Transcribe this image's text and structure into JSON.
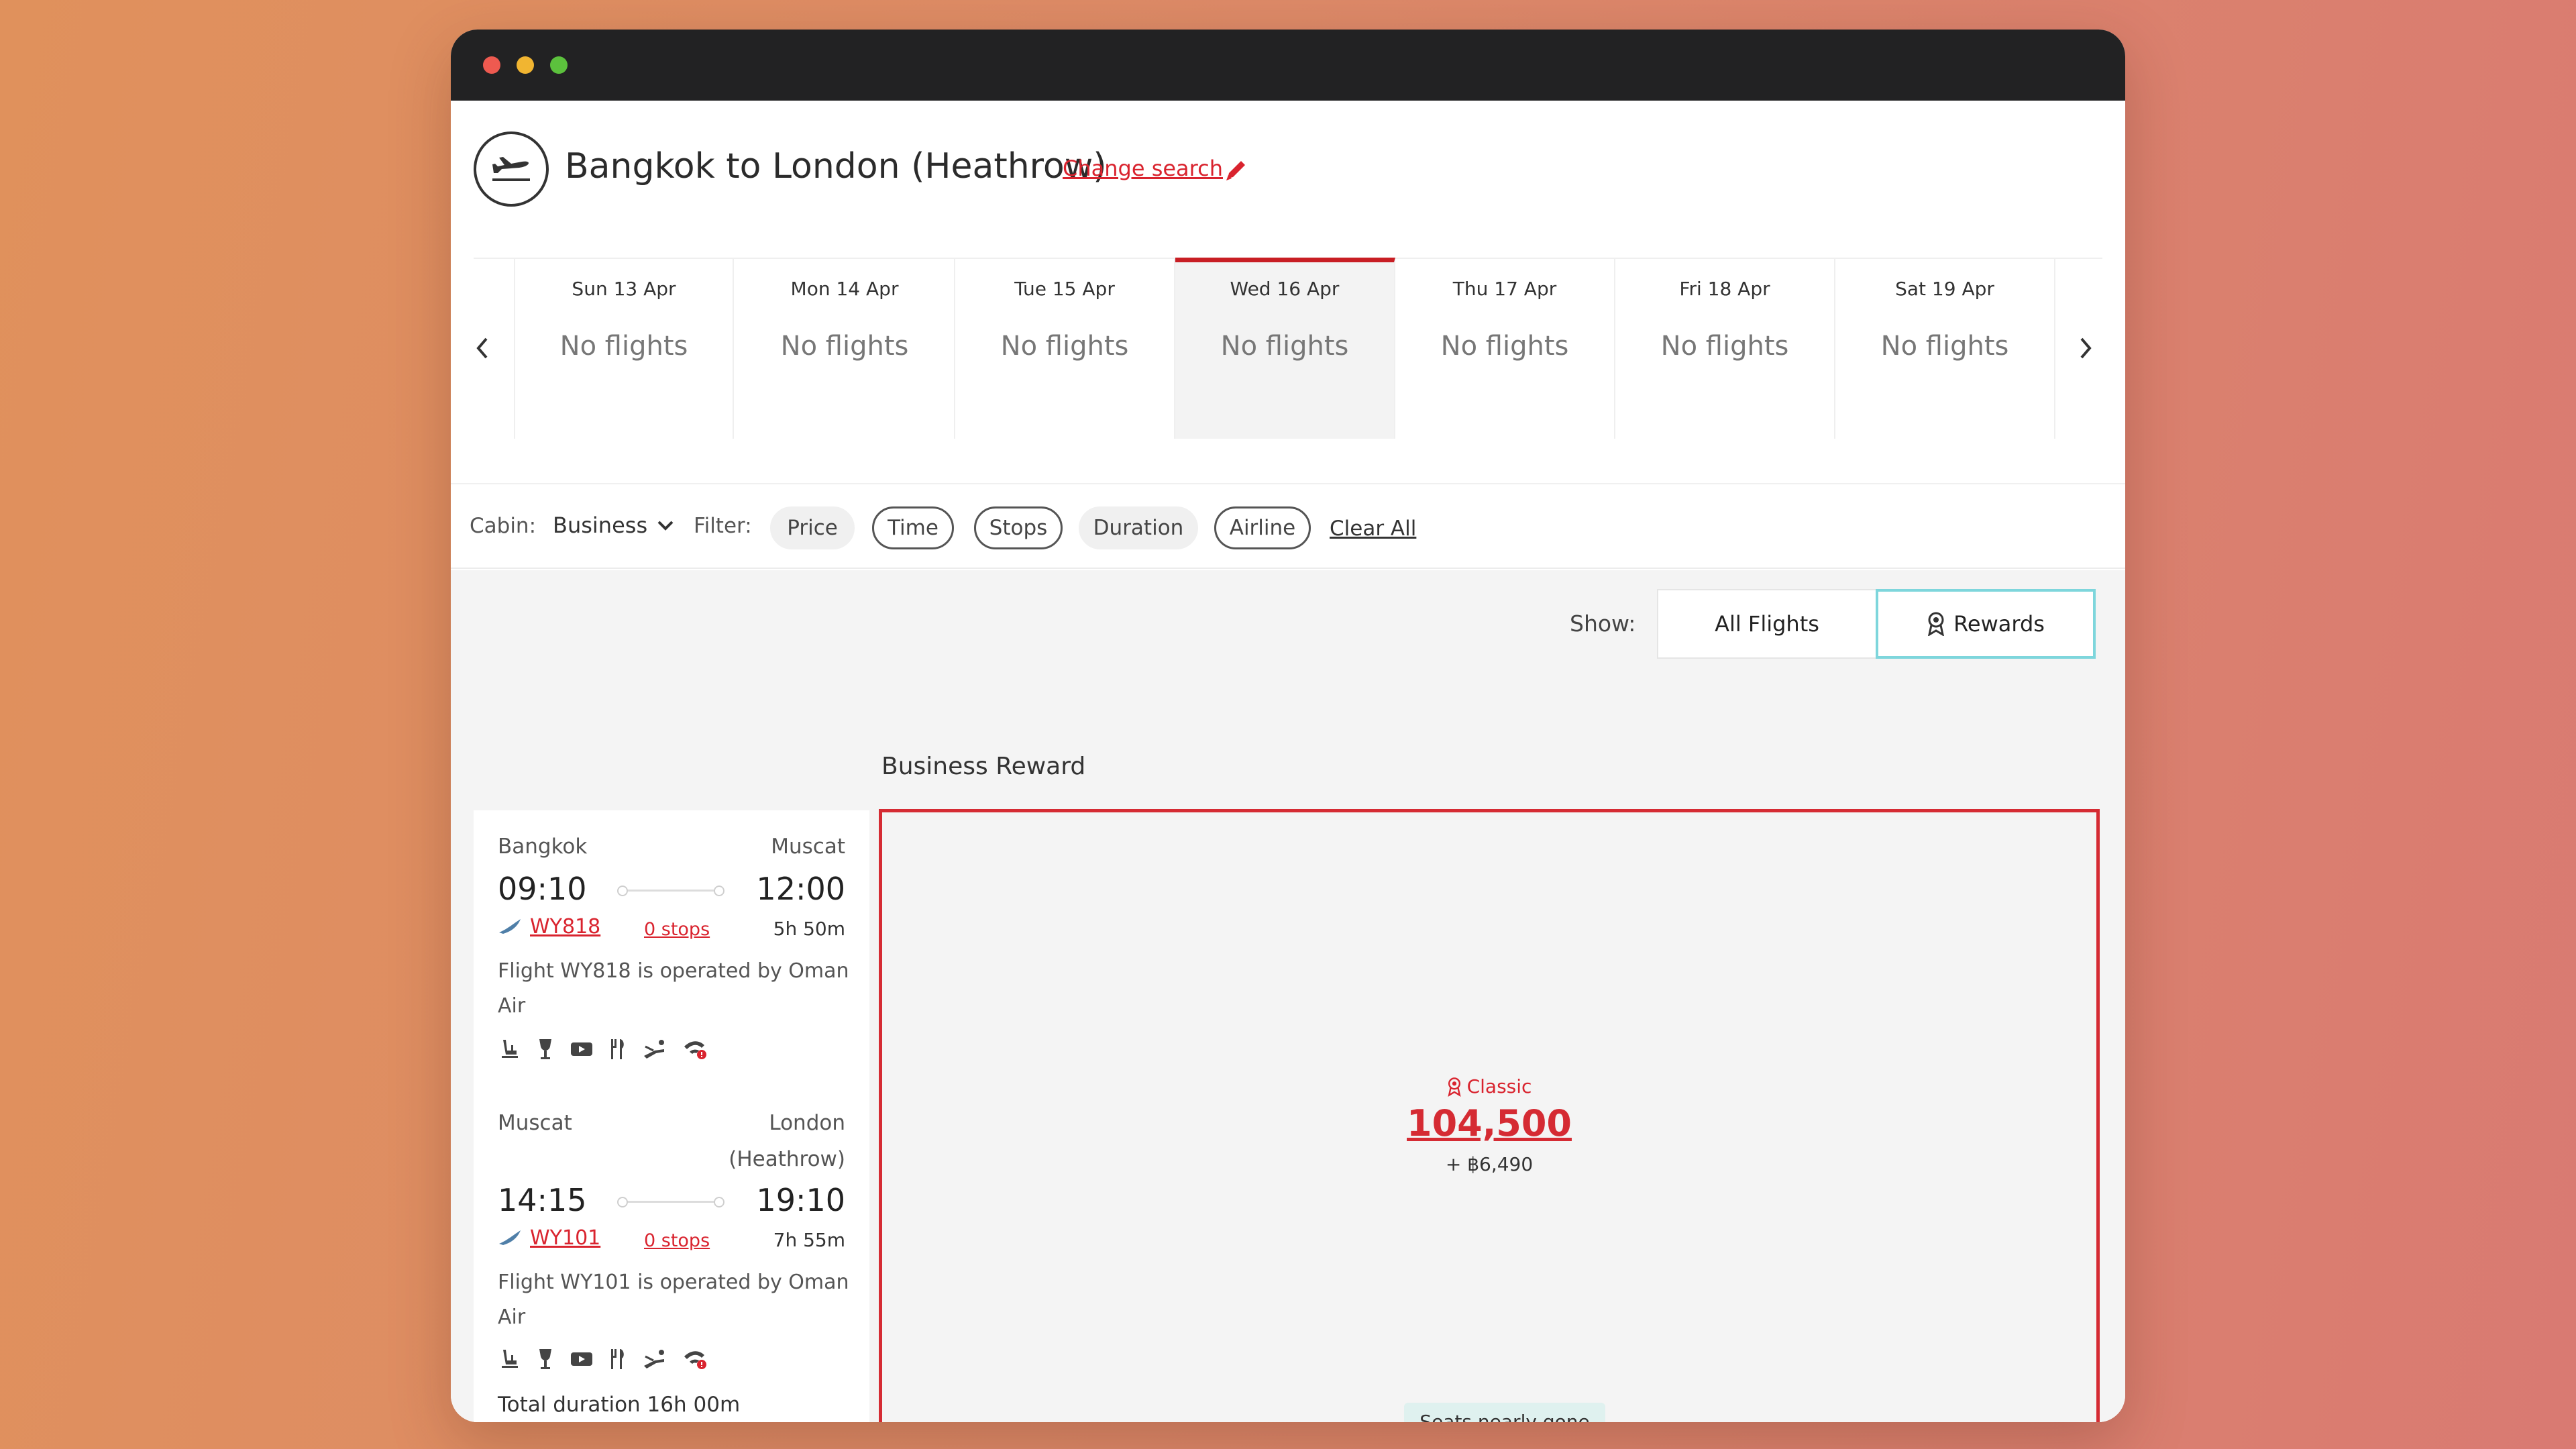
{
  "header": {
    "title": "Bangkok to London (Heathrow)",
    "change_search": "Change search"
  },
  "dates": [
    {
      "label": "Sun 13 Apr",
      "status": "No flights"
    },
    {
      "label": "Mon 14 Apr",
      "status": "No flights"
    },
    {
      "label": "Tue 15 Apr",
      "status": "No flights"
    },
    {
      "label": "Wed 16 Apr",
      "status": "No flights",
      "selected": true
    },
    {
      "label": "Thu 17 Apr",
      "status": "No flights"
    },
    {
      "label": "Fri 18 Apr",
      "status": "No flights"
    },
    {
      "label": "Sat 19 Apr",
      "status": "No flights"
    }
  ],
  "filters": {
    "cabin_label": "Cabin:",
    "cabin_value": "Business",
    "filter_label": "Filter:",
    "chips": [
      "Price",
      "Time",
      "Stops",
      "Duration",
      "Airline"
    ],
    "clear_all": "Clear All"
  },
  "show": {
    "label": "Show:",
    "all_flights": "All Flights",
    "rewards": "Rewards",
    "selected": "Rewards"
  },
  "section_title": "Business Reward",
  "segments": [
    {
      "from": "Bangkok",
      "to": "Muscat",
      "depart": "09:10",
      "arrive": "12:00",
      "flight": "WY818",
      "stops": "0 stops",
      "duration": "5h 50m",
      "operated": "Flight WY818 is operated by Oman Air"
    },
    {
      "from": "Muscat",
      "to_line1": "London",
      "to_line2": "(Heathrow)",
      "depart": "14:15",
      "arrive": "19:10",
      "flight": "WY101",
      "stops": "0 stops",
      "duration": "7h 55m",
      "operated": "Flight WY101 is operated by Oman Air"
    }
  ],
  "amenities": [
    "seat-icon",
    "wine-glass-icon",
    "entertainment-screen-icon",
    "meal-icon",
    "lie-flat-seat-icon",
    "wifi-icon"
  ],
  "total_duration": "Total duration 16h 00m",
  "reward": {
    "tier": "Classic",
    "points": "104,500",
    "cash": "+ ฿6,490",
    "availability": "Seats nearly gone"
  },
  "colors": {
    "accent_red": "#d52b33",
    "rewards_outline": "#7ed6dc",
    "background_gradient_start": "#e0915c",
    "background_gradient_end": "#d97a72"
  }
}
